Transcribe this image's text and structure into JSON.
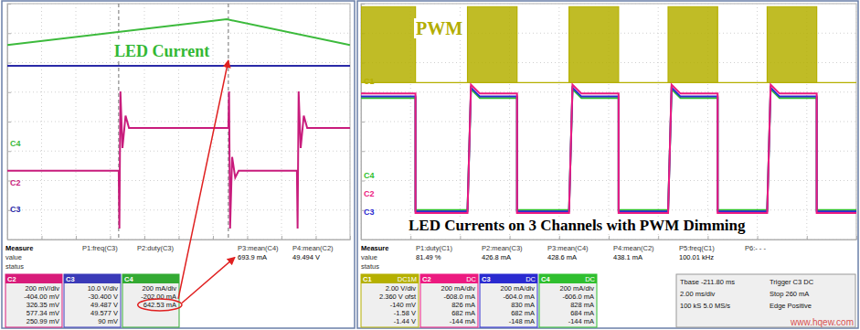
{
  "chart_data": [
    {
      "type": "line",
      "xlim": [
        0,
        10
      ],
      "ylim": [
        -4,
        4
      ],
      "xticks": [
        0,
        1,
        2,
        3,
        4,
        5,
        6,
        7,
        8,
        9,
        10
      ],
      "yticks": [
        -4,
        -3,
        -2,
        -1,
        0,
        1,
        2,
        3,
        4
      ],
      "grid": true,
      "tick_labels": false,
      "cursors": [
        3.25,
        6.45
      ],
      "annotations": [
        {
          "text": "LED Current",
          "color": "#33b833"
        }
      ],
      "series": [
        {
          "name": "C4",
          "color": "#3cba3c",
          "x": [
            0,
            6.4,
            10
          ],
          "values": [
            2.6,
            3.47,
            2.6
          ]
        },
        {
          "name": "C3",
          "color": "#2a2aa8",
          "x": [
            0,
            10
          ],
          "values": [
            1.89,
            1.89
          ]
        },
        {
          "name": "C2",
          "color": "#c81c7c",
          "x": [
            0,
            3.25,
            3.27,
            3.3,
            3.36,
            3.45,
            3.55,
            6.45,
            6.47,
            6.5,
            6.56,
            6.65,
            6.75,
            8.45,
            8.47,
            8.5,
            8.56,
            8.65,
            8.75,
            10
          ],
          "values": [
            -1.67,
            -1.67,
            -3.63,
            1.02,
            -0.9,
            0.2,
            -0.22,
            -0.22,
            1.02,
            -3.63,
            -1.2,
            -1.9,
            -1.67,
            -1.67,
            -3.63,
            1.02,
            -0.9,
            0.2,
            -0.22,
            -0.22
          ]
        }
      ],
      "measure": {
        "title": "Measure",
        "rows": [
          "value",
          "status"
        ],
        "items": [
          {
            "name": "P1:freq(C3)"
          },
          {
            "name": "P2:duty(C3)"
          },
          {
            "name": "P3:mean(C4)",
            "value": "693.9 mA"
          },
          {
            "name": "P4:mean(C2)",
            "value": "49.494 V"
          }
        ]
      },
      "channels": [
        {
          "name": "C2",
          "color": "#d81b7a",
          "lines": [
            "200 mV/div",
            "-404.00 mV",
            "326.35 mV",
            "577.34 mV",
            "250.99 mV"
          ]
        },
        {
          "name": "C3",
          "color": "#3a3ab8",
          "lines": [
            "10.0 V/div",
            "-30.400 V",
            "49.487 V",
            "49.577 V",
            "90 mV"
          ]
        },
        {
          "name": "C4",
          "color": "#33aa33",
          "lines": [
            "200 mA/div",
            "-202.00 mA",
            "642.53 mA"
          ]
        }
      ]
    },
    {
      "type": "line",
      "xlim": [
        0,
        10
      ],
      "ylim": [
        -4,
        4
      ],
      "xticks": [
        0,
        1,
        2,
        3,
        4,
        5,
        6,
        7,
        8,
        9,
        10
      ],
      "yticks": [
        -4,
        -3,
        -2,
        -1,
        0,
        1,
        2,
        3,
        4
      ],
      "grid": true,
      "tick_labels": false,
      "annotations": [
        {
          "text": "PWM",
          "color": "#b3ad00"
        },
        {
          "text": "LED Currents on 3 Channels with PWM Dimming",
          "color": "#000000"
        }
      ],
      "series": [
        {
          "name": "C1",
          "color": "#b5b000",
          "type": "area",
          "x": [
            0,
            1.1,
            1.1,
            2.15,
            2.15,
            3.15,
            3.15,
            4.2,
            4.2,
            5.2,
            5.2,
            6.2,
            6.2,
            7.2,
            7.2,
            8.2,
            8.2,
            9.2,
            9.2,
            10
          ],
          "values": [
            3.9,
            3.9,
            1.32,
            1.32,
            3.9,
            3.9,
            1.32,
            1.32,
            3.9,
            3.9,
            1.32,
            1.32,
            3.9,
            3.9,
            1.32,
            1.32,
            3.9,
            3.9,
            1.32,
            1.32
          ],
          "lower": [
            1.32,
            1.32,
            1.32,
            1.32,
            1.32,
            1.32,
            1.32,
            1.32,
            1.32,
            1.32,
            1.32,
            1.32,
            1.32,
            1.32,
            1.32,
            1.32,
            1.32,
            1.32,
            1.32,
            1.32
          ]
        },
        {
          "name": "C4",
          "color": "#2fbf2f",
          "x": [
            0,
            1.1,
            1.1,
            2.15,
            2.22,
            2.4,
            3.15,
            3.15,
            4.2,
            4.27,
            4.45,
            5.2,
            5.2,
            6.2,
            6.27,
            6.45,
            7.2,
            7.2,
            8.2,
            8.27,
            8.45,
            9.2,
            9.2,
            10
          ],
          "values": [
            0.8,
            0.8,
            -3.0,
            -3.0,
            1.1,
            0.8,
            0.8,
            -3.0,
            -3.0,
            1.1,
            0.8,
            0.8,
            -3.0,
            -3.0,
            1.1,
            0.8,
            0.8,
            -3.0,
            -3.0,
            1.1,
            0.8,
            0.8,
            -3.0,
            -3.0
          ]
        },
        {
          "name": "C3",
          "color": "#2a2ad0",
          "x": [
            0,
            1.1,
            1.1,
            2.15,
            2.22,
            2.4,
            3.15,
            3.15,
            4.2,
            4.27,
            4.45,
            5.2,
            5.2,
            6.2,
            6.27,
            6.45,
            7.2,
            7.2,
            8.2,
            8.27,
            8.45,
            9.2,
            9.2,
            10
          ],
          "values": [
            0.85,
            0.85,
            -3.05,
            -3.05,
            1.15,
            0.85,
            0.85,
            -3.05,
            -3.05,
            1.15,
            0.85,
            0.85,
            -3.05,
            -3.05,
            1.15,
            0.85,
            0.85,
            -3.05,
            -3.05,
            1.15,
            0.85,
            0.85,
            -3.05,
            -3.05
          ]
        },
        {
          "name": "C2",
          "color": "#ec1a80",
          "x": [
            0,
            1.1,
            1.1,
            2.15,
            2.22,
            2.4,
            3.15,
            3.15,
            4.2,
            4.27,
            4.45,
            5.2,
            5.2,
            6.2,
            6.27,
            6.45,
            7.2,
            7.2,
            8.2,
            8.27,
            8.45,
            9.2,
            9.2,
            10
          ],
          "values": [
            0.95,
            0.95,
            -3.1,
            -3.1,
            1.25,
            0.95,
            0.95,
            -3.1,
            -3.1,
            1.25,
            0.95,
            0.95,
            -3.1,
            -3.1,
            1.25,
            0.95,
            0.95,
            -3.1,
            -3.1,
            1.25,
            0.95,
            0.95,
            -3.1,
            -3.1
          ]
        }
      ],
      "measure": {
        "title": "Measure",
        "rows": [
          "value",
          "status"
        ],
        "items": [
          {
            "name": "P1:duty(C1)",
            "value": "81.49 %"
          },
          {
            "name": "P2:mean(C3)",
            "value": "426.8 mA"
          },
          {
            "name": "P3:mean(C4)",
            "value": "428.6 mA"
          },
          {
            "name": "P4:mean(C2)",
            "value": "438.1 mA"
          },
          {
            "name": "P5:freq(C1)",
            "value": "100.01 kHz"
          },
          {
            "name": "P6:- - -"
          }
        ]
      },
      "channels": [
        {
          "name": "C1",
          "coupling": "DC1M",
          "color": "#b5b000",
          "lines": [
            "2.00 V/div",
            "2.360 V ofst",
            "-140 mV",
            "-1.58 V",
            "-1.44 V"
          ]
        },
        {
          "name": "C2",
          "coupling": "DC",
          "color": "#ec1a80",
          "lines": [
            "200 mA/div",
            "-608.0 mA",
            "826 mA",
            "682 mA",
            "-144 mA"
          ]
        },
        {
          "name": "C3",
          "coupling": "DC",
          "color": "#2a2ad0",
          "lines": [
            "200 mA/div",
            "-604.0 mA",
            "830 mA",
            "682 mA",
            "-148 mA"
          ]
        },
        {
          "name": "C4",
          "coupling": "DC",
          "color": "#2fbf2f",
          "lines": [
            "200 mA/div",
            "-606.0 mA",
            "828 mA",
            "684 mA",
            "-144 mA"
          ]
        }
      ],
      "timebase": [
        [
          "Tbase -211.80 ms",
          "Trigger C3 DC"
        ],
        [
          "2.00 ms/div",
          "Stop 260 mA"
        ],
        [
          "100 kS 5.0 MS/s",
          "Edge Positive"
        ]
      ]
    }
  ],
  "watermark": "www.hqew.com"
}
